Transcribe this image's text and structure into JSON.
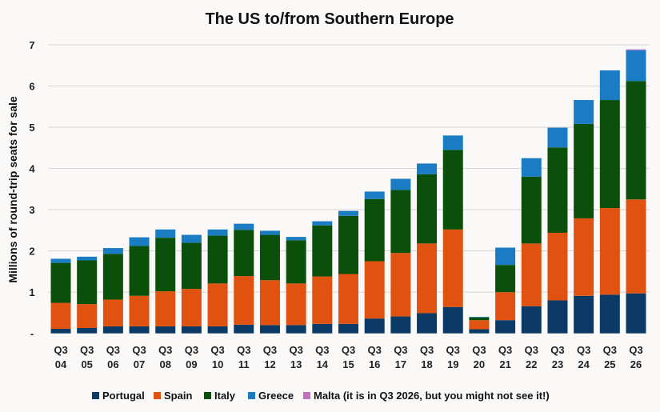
{
  "chart_data": {
    "type": "bar",
    "stacked": true,
    "title": "The US to/from Southern Europe",
    "xlabel": "",
    "ylabel": "Millions of round-trip seats for sale",
    "ylim": [
      0,
      7
    ],
    "yticks": [
      "-",
      "1",
      "2",
      "3",
      "4",
      "5",
      "6",
      "7"
    ],
    "grid": true,
    "legend_position": "bottom",
    "categories": [
      [
        "Q3",
        "04"
      ],
      [
        "Q3",
        "05"
      ],
      [
        "Q3",
        "06"
      ],
      [
        "Q3",
        "07"
      ],
      [
        "Q3",
        "08"
      ],
      [
        "Q3",
        "09"
      ],
      [
        "Q3",
        "10"
      ],
      [
        "Q3",
        "11"
      ],
      [
        "Q3",
        "12"
      ],
      [
        "Q3",
        "13"
      ],
      [
        "Q3",
        "14"
      ],
      [
        "Q3",
        "15"
      ],
      [
        "Q3",
        "16"
      ],
      [
        "Q3",
        "17"
      ],
      [
        "Q3",
        "18"
      ],
      [
        "Q3",
        "19"
      ],
      [
        "Q3",
        "20"
      ],
      [
        "Q3",
        "21"
      ],
      [
        "Q3",
        "22"
      ],
      [
        "Q3",
        "23"
      ],
      [
        "Q3",
        "24"
      ],
      [
        "Q3",
        "25"
      ],
      [
        "Q3",
        "26"
      ]
    ],
    "series": [
      {
        "name": "Portugal",
        "color": "#0b3a66",
        "values": [
          0.11,
          0.13,
          0.17,
          0.17,
          0.17,
          0.17,
          0.17,
          0.21,
          0.2,
          0.2,
          0.23,
          0.23,
          0.36,
          0.41,
          0.49,
          0.64,
          0.1,
          0.32,
          0.66,
          0.8,
          0.91,
          0.94,
          0.97
        ]
      },
      {
        "name": "Spain",
        "color": "#e0520f",
        "values": [
          0.63,
          0.58,
          0.65,
          0.74,
          0.85,
          0.91,
          1.04,
          1.18,
          1.09,
          1.01,
          1.15,
          1.21,
          1.39,
          1.54,
          1.69,
          1.88,
          0.22,
          0.68,
          1.52,
          1.64,
          1.88,
          2.1,
          2.28
        ]
      },
      {
        "name": "Italy",
        "color": "#0a500a",
        "values": [
          0.97,
          1.06,
          1.11,
          1.21,
          1.3,
          1.12,
          1.16,
          1.12,
          1.1,
          1.05,
          1.24,
          1.41,
          1.51,
          1.53,
          1.68,
          1.93,
          0.07,
          0.66,
          1.62,
          2.07,
          2.29,
          2.62,
          2.87
        ]
      },
      {
        "name": "Greece",
        "color": "#1a7cc2",
        "values": [
          0.1,
          0.09,
          0.14,
          0.21,
          0.2,
          0.19,
          0.15,
          0.15,
          0.1,
          0.08,
          0.1,
          0.12,
          0.18,
          0.27,
          0.26,
          0.35,
          0.01,
          0.42,
          0.45,
          0.48,
          0.58,
          0.72,
          0.75
        ]
      },
      {
        "name": "Malta (it is in Q3 2026, but you might not see it!)",
        "color": "#c070c0",
        "values": [
          0,
          0,
          0,
          0,
          0,
          0,
          0,
          0,
          0,
          0,
          0,
          0,
          0,
          0,
          0,
          0,
          0,
          0,
          0,
          0,
          0,
          0,
          0.02
        ]
      }
    ]
  }
}
